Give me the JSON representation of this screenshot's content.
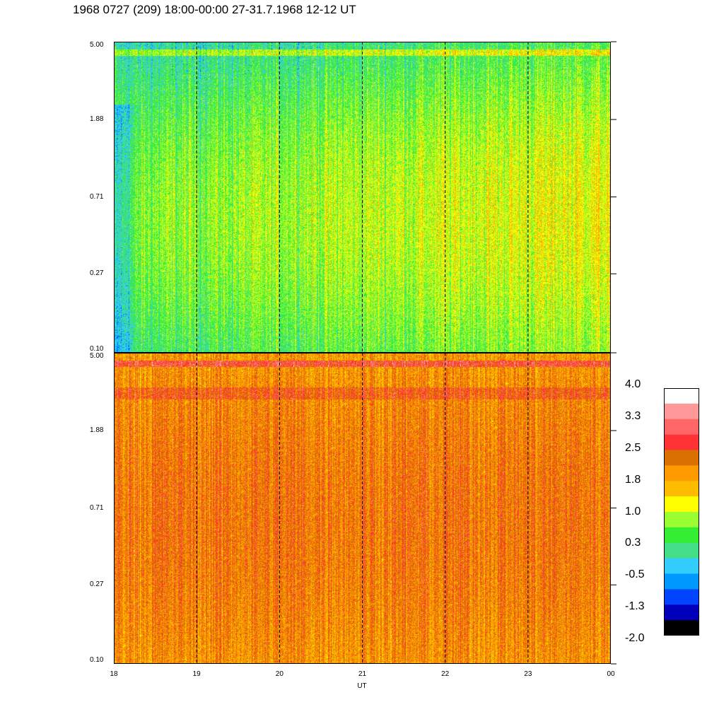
{
  "title": "1968 0727 (209) 18:00-00:00 27-31.7.1968  12-12 UT",
  "chart_data": [
    {
      "type": "heatmap",
      "panel": "upper",
      "x_ticks": [
        "18",
        "19",
        "20",
        "21",
        "22",
        "23",
        "00"
      ],
      "y_ticks": [
        "5.00",
        "1.88",
        "0.71",
        "0.27",
        "0.10"
      ],
      "y_scale": "log",
      "ylim": [
        0.1,
        5.0
      ],
      "xlim": [
        "18",
        "00"
      ],
      "dashed_grid_x": [
        "19",
        "20",
        "21",
        "22",
        "23"
      ],
      "dominant_level_range": [
        -0.5,
        1.0
      ]
    },
    {
      "type": "heatmap",
      "panel": "lower",
      "x_ticks": [
        "18",
        "19",
        "20",
        "21",
        "22",
        "23",
        "00"
      ],
      "y_ticks": [
        "5.00",
        "1.88",
        "0.71",
        "0.27",
        "0.10"
      ],
      "y_scale": "log",
      "ylim": [
        0.1,
        5.0
      ],
      "xlim": [
        "18",
        "00"
      ],
      "dashed_grid_x": [
        "19",
        "20",
        "21",
        "22",
        "23"
      ],
      "dominant_level_range": [
        1.0,
        2.5
      ]
    }
  ],
  "xlabel": "UT",
  "colorbar": {
    "labels": [
      "4.0",
      "3.3",
      "2.5",
      "1.8",
      "1.0",
      "0.3",
      "-0.5",
      "-1.3",
      "-2.0"
    ],
    "range": [
      -2.0,
      4.0
    ],
    "colors": [
      "#ffffff",
      "#ff9999",
      "#ff6666",
      "#ff3333",
      "#d97000",
      "#ff9900",
      "#ffbb00",
      "#ffff00",
      "#99ff33",
      "#33ee33",
      "#44dd88",
      "#33ccff",
      "#0099ff",
      "#0044ff",
      "#0000bb",
      "#000000"
    ]
  }
}
